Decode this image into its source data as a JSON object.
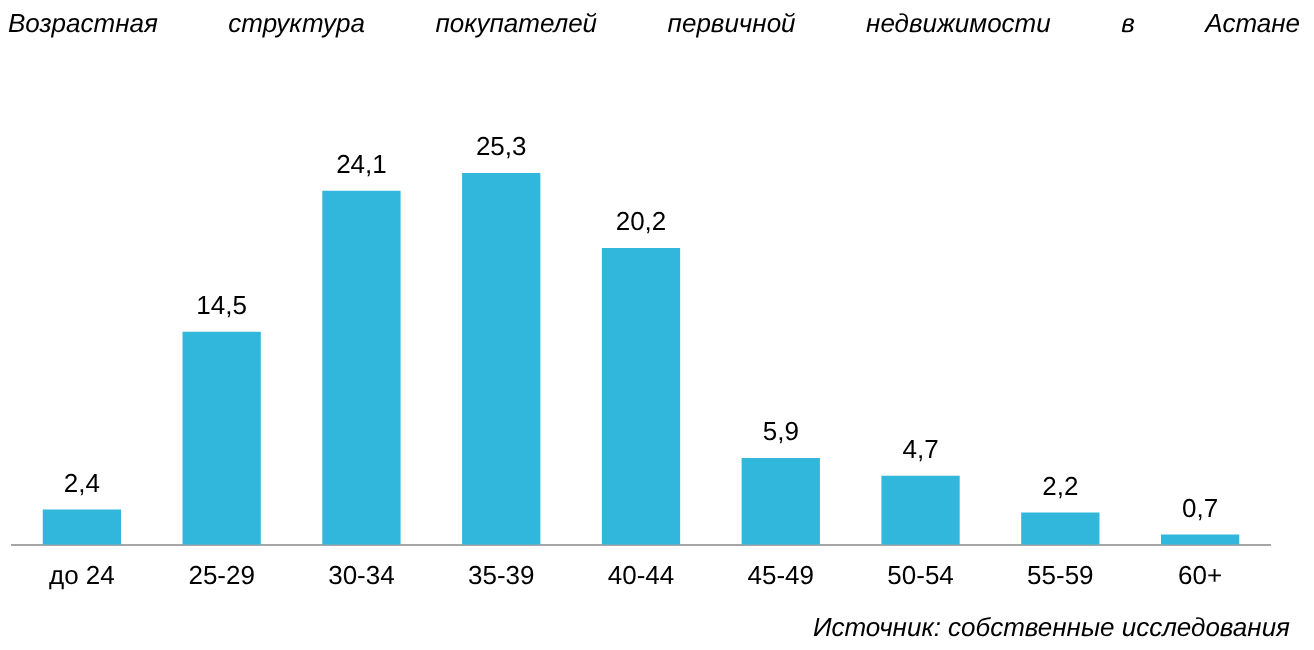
{
  "chart_data": {
    "type": "bar",
    "title": "Возрастная структура покупателей первичной недвижимости в Астане",
    "categories": [
      "до 24",
      "25-29",
      "30-34",
      "35-39",
      "40-44",
      "45-49",
      "50-54",
      "55-59",
      "60+"
    ],
    "values": [
      2.4,
      14.5,
      24.1,
      25.3,
      20.2,
      5.9,
      4.7,
      2.2,
      0.7
    ],
    "value_labels": [
      "2,4",
      "14,5",
      "24,1",
      "25,3",
      "20,2",
      "5,9",
      "4,7",
      "2,2",
      "0,7"
    ],
    "color": "#31b6dc",
    "grid": false,
    "legend": false,
    "tick_labels": "x",
    "annotations": [
      "Источник: собственные исследования"
    ]
  }
}
